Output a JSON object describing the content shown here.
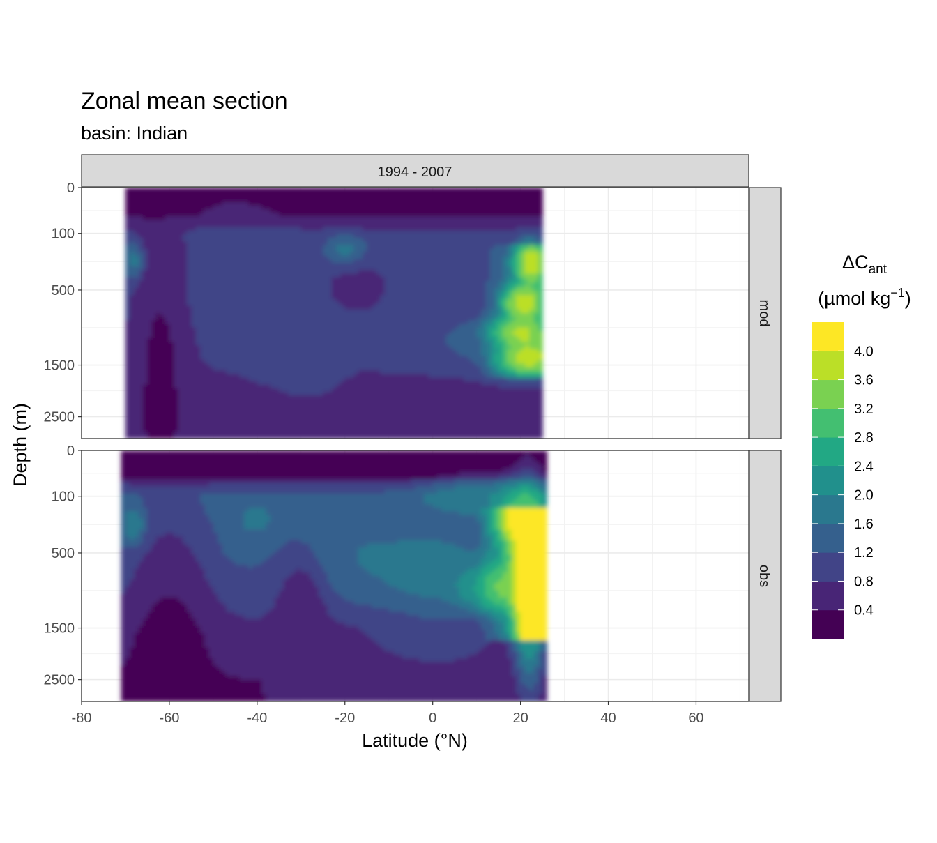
{
  "title": "Zonal mean section",
  "subtitle": "basin: Indian",
  "chart_data": {
    "type": "heatmap",
    "x_label": "Latitude (°N)",
    "y_label": "Depth (m)",
    "facet_column": "1994 - 2007",
    "facet_rows": [
      "mod",
      "obs"
    ],
    "x_ticks": [
      -80,
      -60,
      -40,
      -20,
      0,
      20,
      40,
      60
    ],
    "x_ticks_text": [
      "-80",
      "-60",
      "-40",
      "-20",
      "0",
      "20",
      "40",
      "60"
    ],
    "xlim": [
      -80,
      72
    ],
    "y_ticks": [
      0,
      100,
      500,
      1500,
      2500
    ],
    "y_ticks_text": [
      "0",
      "100",
      "500",
      "1500",
      "2500"
    ],
    "y_axis": "reversed, square-root scaled depth",
    "grid": true,
    "legend": {
      "title_main": "ΔC",
      "title_sub": "ant",
      "title_unit_pre": "(µmol kg",
      "title_unit_sup": "−1",
      "title_unit_post": ")",
      "placement": "right",
      "breaks": [
        0.4,
        0.8,
        1.2,
        1.6,
        2.0,
        2.4,
        2.8,
        3.2,
        3.6,
        4.0
      ],
      "break_labels": [
        "0.4",
        "0.8",
        "1.2",
        "1.6",
        "2.0",
        "2.4",
        "2.8",
        "3.2",
        "3.6",
        "4.0"
      ],
      "colors": [
        "#440154",
        "#482576",
        "#414487",
        "#35608D",
        "#2A788E",
        "#21908C",
        "#22A884",
        "#43BF71",
        "#7AD151",
        "#BBDF27",
        "#FDE725"
      ]
    },
    "panels": [
      {
        "name": "mod",
        "lat_range": [
          -70,
          25
        ],
        "depth_max": 3000,
        "mean_profile_by_depth": [
          {
            "depth": 10,
            "value": 0.2
          },
          {
            "depth": 100,
            "value": 0.9
          },
          {
            "depth": 500,
            "value": 1.0
          },
          {
            "depth": 1500,
            "value": 0.8
          },
          {
            "depth": 2500,
            "value": 0.6
          }
        ]
      },
      {
        "name": "obs",
        "lat_range": [
          -71,
          26
        ],
        "depth_max": 3000,
        "mean_profile_by_depth": [
          {
            "depth": 10,
            "value": 0.3
          },
          {
            "depth": 100,
            "value": 1.4
          },
          {
            "depth": 500,
            "value": 1.3
          },
          {
            "depth": 1500,
            "value": 0.7
          },
          {
            "depth": 2500,
            "value": 0.4
          }
        ]
      }
    ]
  }
}
